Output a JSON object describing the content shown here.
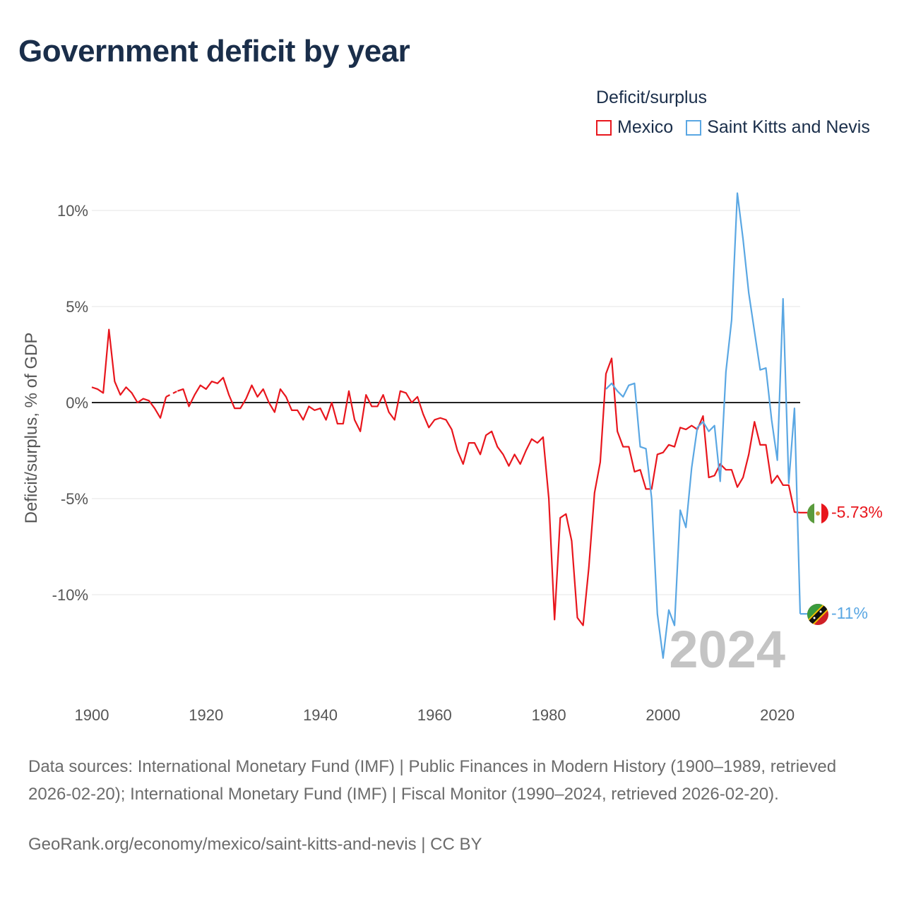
{
  "title": "Government deficit by year",
  "legend": {
    "title": "Deficit/surplus",
    "items": [
      {
        "name": "Mexico",
        "color": "#e8161d"
      },
      {
        "name": "Saint Kitts and Nevis",
        "color": "#5aa7e3"
      }
    ]
  },
  "year_label": "2024",
  "end_labels": {
    "mexico": "-5.73%",
    "skn": "-11%"
  },
  "sources": "Data sources: International Monetary Fund (IMF) | Public Finances in Modern History (1900–1989, retrieved 2026-02-20); International Monetary Fund (IMF) | Fiscal Monitor (1990–2024, retrieved 2026-02-20).",
  "credit": "GeoRank.org/economy/mexico/saint-kitts-and-nevis | CC BY",
  "chart_data": {
    "type": "line",
    "title": "Government deficit by year",
    "xlabel": "",
    "ylabel": "Deficit/surplus, % of GDP",
    "xlim": [
      1900,
      2024
    ],
    "ylim": [
      -14,
      11
    ],
    "x_ticks": [
      1900,
      1920,
      1940,
      1960,
      1980,
      2000,
      2020
    ],
    "y_ticks": [
      10,
      5,
      0,
      -5,
      -10
    ],
    "y_tick_labels": [
      "10%",
      "5%",
      "0%",
      "-5%",
      "-10%"
    ],
    "series": [
      {
        "name": "Mexico",
        "color": "#e8161d",
        "x": [
          1900,
          1901,
          1902,
          1903,
          1904,
          1905,
          1906,
          1907,
          1908,
          1909,
          1910,
          1911,
          1912,
          1913,
          null,
          1915,
          1916,
          1917,
          1918,
          1919,
          1920,
          1921,
          1922,
          1923,
          1924,
          1925,
          1926,
          1927,
          1928,
          1929,
          1930,
          1931,
          1932,
          1933,
          1934,
          1935,
          1936,
          1937,
          1938,
          1939,
          1940,
          1941,
          1942,
          1943,
          1944,
          1945,
          1946,
          1947,
          1948,
          1949,
          1950,
          1951,
          1952,
          1953,
          1954,
          1955,
          1956,
          1957,
          1958,
          1959,
          1960,
          1961,
          1962,
          1963,
          1964,
          1965,
          1966,
          1967,
          1968,
          1969,
          1970,
          1971,
          1972,
          1973,
          1974,
          1975,
          1976,
          1977,
          1978,
          1979,
          1980,
          1981,
          1982,
          1983,
          1984,
          1985,
          1986,
          1987,
          1988,
          1989,
          1990,
          1991,
          1992,
          1993,
          1994,
          1995,
          1996,
          1997,
          1998,
          1999,
          2000,
          2001,
          2002,
          2003,
          2004,
          2005,
          2006,
          2007,
          2008,
          2009,
          2010,
          2011,
          2012,
          2013,
          2014,
          2015,
          2016,
          2017,
          2018,
          2019,
          2020,
          2021,
          2022,
          2023,
          2024
        ],
        "values": [
          0.8,
          0.7,
          0.5,
          3.8,
          1.1,
          0.4,
          0.8,
          0.5,
          0.0,
          0.2,
          0.1,
          -0.3,
          -0.8,
          0.3,
          null,
          0.6,
          0.7,
          -0.2,
          0.4,
          0.9,
          0.7,
          1.1,
          1.0,
          1.3,
          0.4,
          -0.3,
          -0.3,
          0.2,
          0.9,
          0.3,
          0.7,
          0.0,
          -0.5,
          0.7,
          0.3,
          -0.4,
          -0.4,
          -0.9,
          -0.2,
          -0.4,
          -0.3,
          -0.9,
          0.0,
          -1.1,
          -1.1,
          0.6,
          -0.9,
          -1.5,
          0.4,
          -0.2,
          -0.2,
          0.4,
          -0.5,
          -0.9,
          0.6,
          0.5,
          0.0,
          0.3,
          -0.6,
          -1.3,
          -0.9,
          -0.8,
          -0.9,
          -1.4,
          -2.5,
          -3.2,
          -2.1,
          -2.1,
          -2.7,
          -1.7,
          -1.5,
          -2.3,
          -2.7,
          -3.3,
          -2.7,
          -3.2,
          -2.5,
          -1.9,
          -2.1,
          -1.8,
          -5.0,
          -11.3,
          -6.0,
          -5.8,
          -7.2,
          -11.2,
          -11.6,
          -8.6,
          -4.7,
          -3.1,
          1.5,
          2.3,
          -1.5,
          -2.3,
          -2.3,
          -3.6,
          -3.5,
          -4.5,
          -4.5,
          -2.7,
          -2.6,
          -2.2,
          -2.3,
          -1.3,
          -1.4,
          -1.2,
          -1.4,
          -0.7,
          -3.9,
          -3.8,
          -3.2,
          -3.5,
          -3.5,
          -4.4,
          -3.9,
          -2.7,
          -1.0,
          -2.2,
          -2.2,
          -4.2,
          -3.8,
          -4.3,
          -4.3,
          -5.7,
          -5.73
        ]
      },
      {
        "name": "Saint Kitts and Nevis",
        "color": "#5aa7e3",
        "x": [
          1990,
          1991,
          1992,
          1993,
          1994,
          1995,
          1996,
          1997,
          1998,
          1999,
          2000,
          2001,
          2002,
          2003,
          2004,
          2005,
          2006,
          2007,
          2008,
          2009,
          2010,
          2011,
          2012,
          2013,
          2014,
          2015,
          2016,
          2017,
          2018,
          2019,
          2020,
          2021,
          2022,
          2023,
          2024
        ],
        "values": [
          0.7,
          1.0,
          0.6,
          0.3,
          0.9,
          1.0,
          -2.3,
          -2.4,
          -5.0,
          -11.0,
          -13.3,
          -10.8,
          -11.6,
          -5.6,
          -6.5,
          -3.4,
          -1.3,
          -1.0,
          -1.5,
          -1.2,
          -4.1,
          1.6,
          4.3,
          10.9,
          8.5,
          5.7,
          3.7,
          1.7,
          1.8,
          -0.9,
          -3.0,
          5.4,
          -4.2,
          -0.3,
          -11.0
        ]
      }
    ],
    "annotations": [
      {
        "series": "Mexico",
        "label": "-5.73%"
      },
      {
        "series": "Saint Kitts and Nevis",
        "label": "-11%"
      }
    ]
  }
}
